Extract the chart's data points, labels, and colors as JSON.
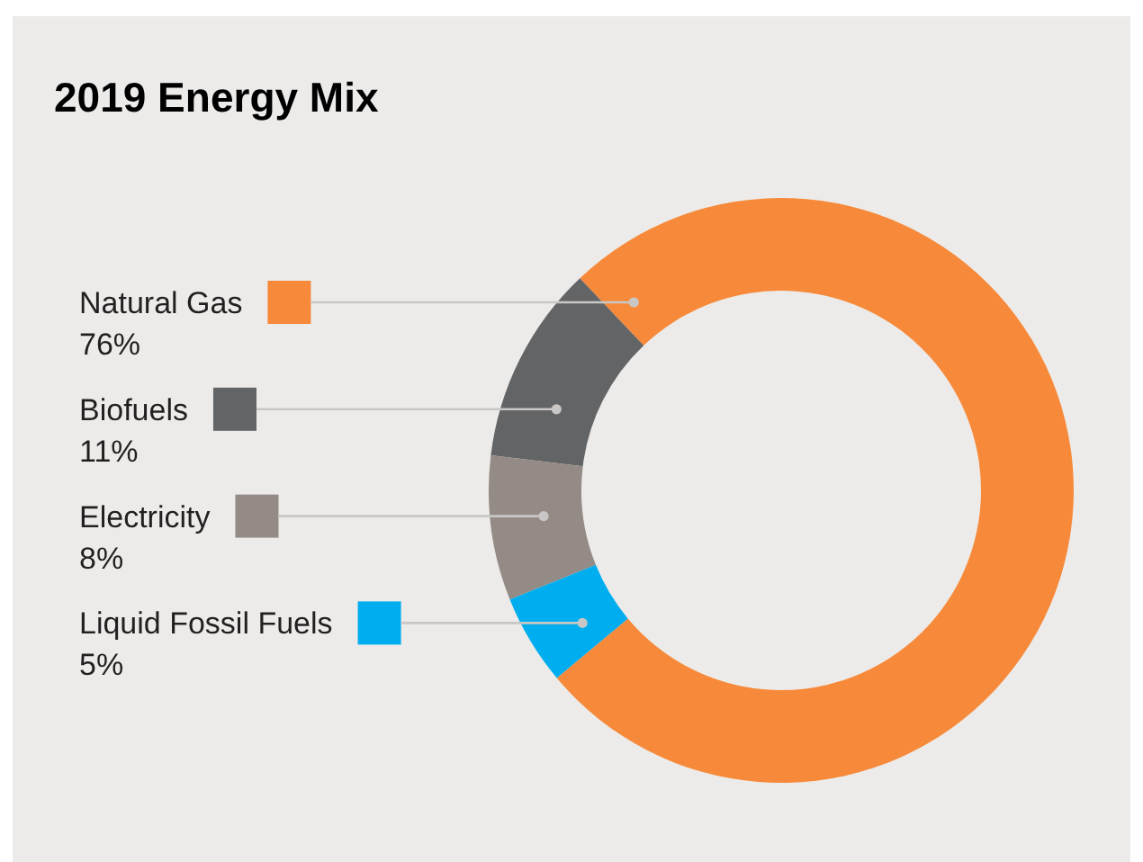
{
  "chart_data": {
    "type": "donut",
    "title": "2019 Energy Mix",
    "categories": [
      "Natural Gas",
      "Biofuels",
      "Electricity",
      "Liquid Fossil Fuels"
    ],
    "values": [
      76,
      11,
      8,
      5
    ],
    "colors": [
      "#f68a3a",
      "#636466",
      "#958b86",
      "#00aeef"
    ],
    "value_labels": [
      "76%",
      "11%",
      "8%",
      "5%"
    ],
    "legend": "left"
  }
}
